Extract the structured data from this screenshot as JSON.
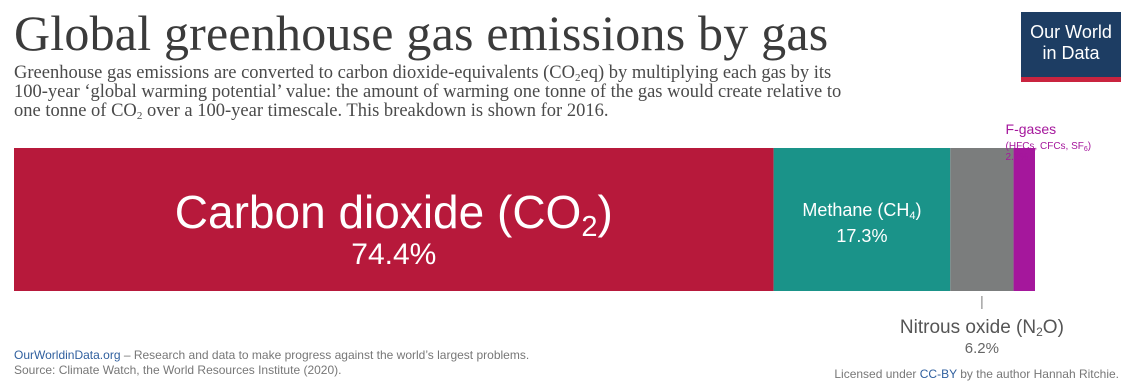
{
  "header": {
    "title": "Global greenhouse gas emissions by gas",
    "subtitle_line1": "Greenhouse gas emissions are converted to carbon dioxide-equivalents (CO",
    "subtitle_sub1": "2",
    "subtitle_line1b": "eq) by multiplying each gas by its",
    "subtitle_line2": "100-year ‘global warming potential’ value: the amount of warming one tonne of the gas would create relative to",
    "subtitle_line3a": "one tonne of CO",
    "subtitle_sub2": "2",
    "subtitle_line3b": " over a 100-year timescale. This breakdown is shown for 2016."
  },
  "logo": {
    "line1": "Our World",
    "line2": "in Data"
  },
  "chart_data": {
    "type": "bar",
    "orientation": "horizontal-stacked",
    "unit": "%",
    "categories": [
      "Carbon dioxide (CO₂)",
      "Methane (CH₄)",
      "Nitrous oxide (N₂O)",
      "F-gases"
    ],
    "values": [
      74.4,
      17.3,
      6.2,
      2.1
    ],
    "value_labels": [
      "74.4%",
      "17.3%",
      "6.2%",
      "2.1%"
    ],
    "segments": [
      {
        "label": "Carbon dioxide (CO",
        "sub": "2",
        "label_end": ")",
        "value": 74.4,
        "value_label": "74.4%",
        "color": "#b7193b"
      },
      {
        "label": "Methane (CH",
        "sub": "4",
        "label_end": ")",
        "value": 17.3,
        "value_label": "17.3%",
        "color": "#1a9389"
      },
      {
        "label": "Nitrous oxide (N",
        "sub": "2",
        "label_end": "O)",
        "value": 6.2,
        "value_label": "6.2%",
        "color": "#7b7d7d"
      },
      {
        "label": "F-gases",
        "detail": "(HFCs, CFCs, SF",
        "detail_sub": "6",
        "detail_end": ")",
        "value": 2.1,
        "value_label": "2.1%",
        "color": "#a5179c"
      }
    ]
  },
  "footer": {
    "site": "OurWorldinData.org",
    "tagline": " – Research and data to make progress against the world’s largest problems.",
    "source": "Source: Climate Watch, the World Resources Institute (2020).",
    "license_prefix": "Licensed under ",
    "license_link": "CC-BY",
    "license_suffix": " by the author Hannah Ritchie."
  }
}
